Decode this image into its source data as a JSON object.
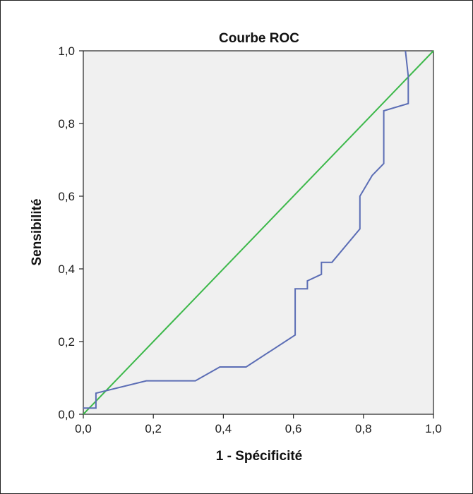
{
  "chart_data": {
    "type": "line",
    "title": "Courbe ROC",
    "xlabel": "1 - Spécificité",
    "ylabel": "Sensibilité",
    "xlim": [
      0,
      1
    ],
    "ylim": [
      0,
      1
    ],
    "xticks": [
      "0,0",
      "0,2",
      "0,4",
      "0,6",
      "0,8",
      "1,0"
    ],
    "yticks": [
      "0,0",
      "0,2",
      "0,4",
      "0,6",
      "0,8",
      "1,0"
    ],
    "grid": false,
    "series": [
      {
        "color": "#5b6db5",
        "points": [
          [
            0.0,
            0.017
          ],
          [
            0.036,
            0.017
          ],
          [
            0.036,
            0.058
          ],
          [
            0.18,
            0.092
          ],
          [
            0.32,
            0.092
          ],
          [
            0.39,
            0.13
          ],
          [
            0.465,
            0.13
          ],
          [
            0.605,
            0.218
          ],
          [
            0.605,
            0.345
          ],
          [
            0.64,
            0.345
          ],
          [
            0.64,
            0.367
          ],
          [
            0.68,
            0.385
          ],
          [
            0.68,
            0.418
          ],
          [
            0.71,
            0.418
          ],
          [
            0.79,
            0.51
          ],
          [
            0.79,
            0.6
          ],
          [
            0.825,
            0.657
          ],
          [
            0.858,
            0.69
          ],
          [
            0.858,
            0.835
          ],
          [
            0.928,
            0.855
          ],
          [
            0.928,
            0.93
          ],
          [
            0.92,
            1.0
          ]
        ]
      },
      {
        "color": "#3cb84a",
        "points": [
          [
            0,
            0
          ],
          [
            1,
            1
          ]
        ]
      }
    ],
    "plot_background": "#f0f0f0"
  }
}
